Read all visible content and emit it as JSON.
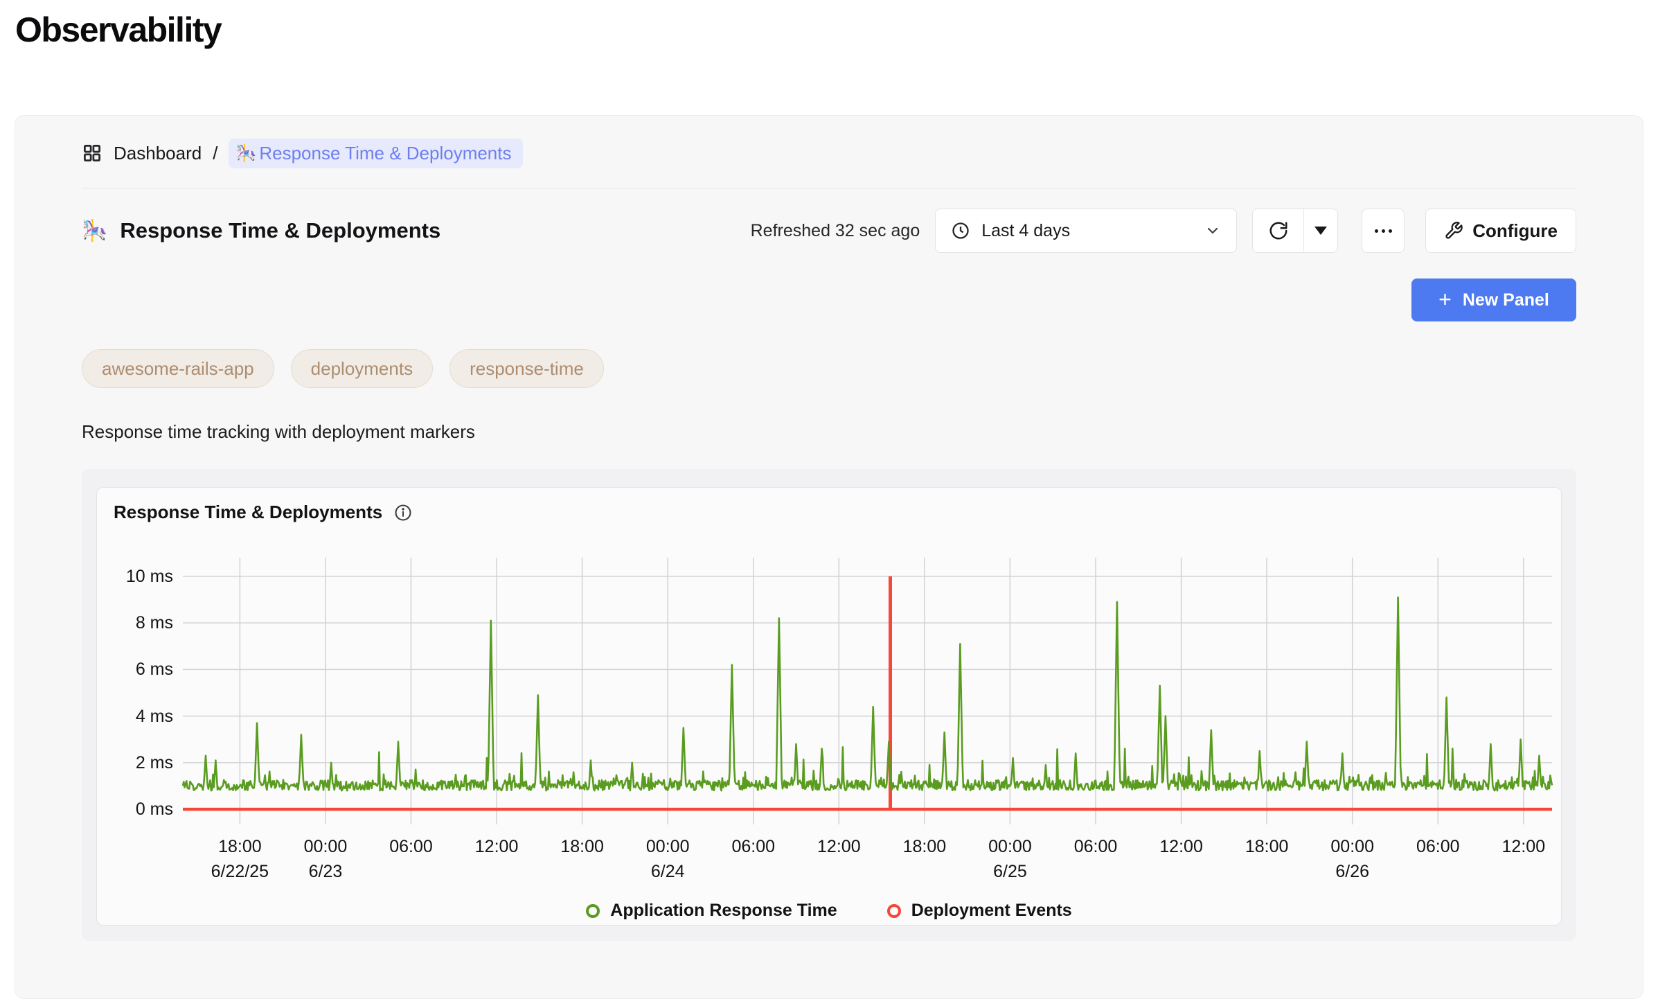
{
  "page": {
    "title": "Observability"
  },
  "breadcrumb": {
    "root": "Dashboard",
    "separator": "/",
    "current": {
      "icon": "🎠",
      "label": "Response Time & Deployments"
    }
  },
  "header": {
    "icon": "🎠",
    "title": "Response Time & Deployments",
    "refreshed": "Refreshed 32 sec ago",
    "time_range": "Last 4 days",
    "configure_label": "Configure",
    "new_panel_label": "New Panel",
    "plus_icon": "+"
  },
  "tags": [
    "awesome-rails-app",
    "deployments",
    "response-time"
  ],
  "description": "Response time tracking with deployment markers",
  "panel": {
    "title": "Response Time & Deployments"
  },
  "colors": {
    "accent_blue": "#4d7af0",
    "chip_blue": "#6d7ef0",
    "tag_brown": "#ad8d70",
    "response_green": "#5a9c20",
    "deployment_red": "#f4483a"
  },
  "chart_data": {
    "type": "line",
    "title": "Response Time & Deployments",
    "xlabel": "",
    "ylabel": "ms",
    "ylim": [
      0,
      10
    ],
    "grid": true,
    "grid_color": "#d2d2d6",
    "x_span_hours": 96,
    "x_start": "6/22/25 14:00",
    "x_end": "6/26/25 14:00",
    "y_ticks": [
      {
        "label": "0 ms",
        "value": 0
      },
      {
        "label": "2 ms",
        "value": 2
      },
      {
        "label": "4 ms",
        "value": 4
      },
      {
        "label": "6 ms",
        "value": 6
      },
      {
        "label": "8 ms",
        "value": 8
      },
      {
        "label": "10 ms",
        "value": 10
      }
    ],
    "x_ticks": [
      {
        "label": "18:00",
        "date": "6/22/25",
        "t": 4
      },
      {
        "label": "00:00",
        "date": "6/23",
        "t": 10
      },
      {
        "label": "06:00",
        "t": 16
      },
      {
        "label": "12:00",
        "t": 22
      },
      {
        "label": "18:00",
        "t": 28
      },
      {
        "label": "00:00",
        "date": "6/24",
        "t": 34
      },
      {
        "label": "06:00",
        "t": 40
      },
      {
        "label": "12:00",
        "t": 46
      },
      {
        "label": "18:00",
        "t": 52
      },
      {
        "label": "00:00",
        "date": "6/25",
        "t": 58
      },
      {
        "label": "06:00",
        "t": 64
      },
      {
        "label": "12:00",
        "t": 70
      },
      {
        "label": "18:00",
        "t": 76
      },
      {
        "label": "00:00",
        "date": "6/26",
        "t": 82
      },
      {
        "label": "06:00",
        "t": 88
      },
      {
        "label": "12:00",
        "t": 94
      }
    ],
    "series": [
      {
        "name": "Application Response Time",
        "color": "#5a9c20",
        "baseline_ms": {
          "min": 0.8,
          "max": 1.25
        },
        "spikes_t_hours_vs_ms": [
          [
            1.6,
            2.3
          ],
          [
            2.3,
            2.1
          ],
          [
            5.2,
            3.7
          ],
          [
            8.3,
            3.2
          ],
          [
            10.4,
            2.0
          ],
          [
            15.1,
            2.9
          ],
          [
            21.6,
            8.1
          ],
          [
            24.9,
            4.9
          ],
          [
            28.6,
            2.1
          ],
          [
            31.5,
            2.0
          ],
          [
            35.1,
            3.5
          ],
          [
            38.5,
            6.2
          ],
          [
            41.8,
            8.2
          ],
          [
            43.0,
            2.8
          ],
          [
            44.8,
            2.6
          ],
          [
            48.4,
            4.4
          ],
          [
            49.5,
            2.9
          ],
          [
            53.4,
            3.3
          ],
          [
            54.5,
            7.1
          ],
          [
            58.2,
            2.2
          ],
          [
            60.5,
            1.9
          ],
          [
            62.6,
            2.4
          ],
          [
            65.5,
            8.9
          ],
          [
            68.5,
            5.3
          ],
          [
            68.9,
            4.0
          ],
          [
            72.1,
            3.4
          ],
          [
            75.5,
            2.5
          ],
          [
            78.8,
            2.9
          ],
          [
            81.3,
            2.4
          ],
          [
            85.2,
            9.1
          ],
          [
            88.6,
            4.8
          ],
          [
            91.7,
            2.8
          ],
          [
            93.8,
            3.0
          ],
          [
            95.1,
            2.3
          ]
        ]
      },
      {
        "name": "Deployment Events",
        "color": "#f4483a",
        "baseline_value": 0,
        "events": [
          {
            "t": 49.6,
            "peak_ms": 10,
            "approx_time": "6/24 ~15:30"
          }
        ]
      }
    ],
    "legend": [
      {
        "label": "Application Response Time",
        "color": "#5a9c20"
      },
      {
        "label": "Deployment Events",
        "color": "#f4483a"
      }
    ],
    "legend_position": "bottom-center"
  }
}
